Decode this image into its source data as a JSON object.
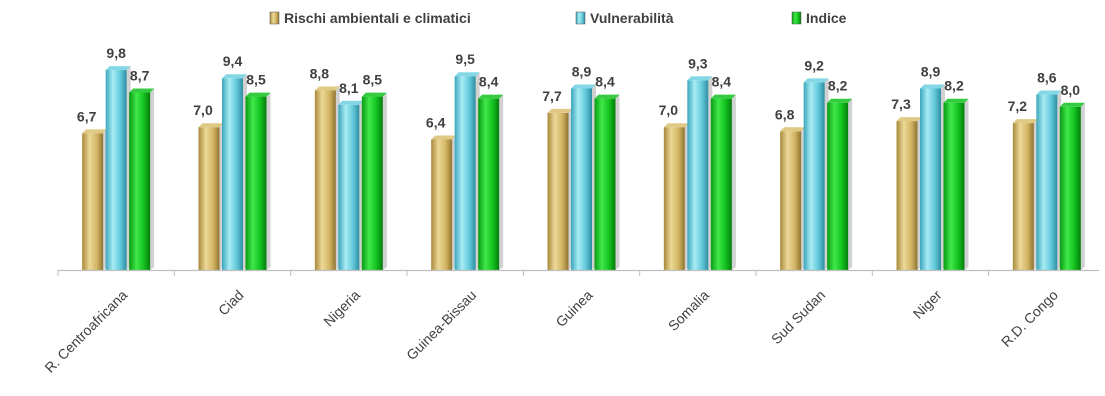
{
  "chart_data": {
    "type": "bar",
    "categories": [
      "R. Centroafricana",
      "Ciad",
      "Nigeria",
      "Guinea-Bissau",
      "Guinea",
      "Somalia",
      "Sud Sudan",
      "Niger",
      "R.D. Congo"
    ],
    "series": [
      {
        "name": "Rischi ambientali e climatici",
        "values": [
          6.7,
          7.0,
          8.8,
          6.4,
          7.7,
          7.0,
          6.8,
          7.3,
          7.2
        ],
        "labels": [
          "6,7",
          "7,0",
          "8,8",
          "6,4",
          "7,7",
          "7,0",
          "6,8",
          "7,3",
          "7,2"
        ],
        "color": "#d9c070"
      },
      {
        "name": "Vulnerabilità",
        "values": [
          9.8,
          9.4,
          8.1,
          9.5,
          8.9,
          9.3,
          9.2,
          8.9,
          8.6
        ],
        "labels": [
          "9,8",
          "9,4",
          "8,1",
          "9,5",
          "8,9",
          "9,3",
          "9,2",
          "8,9",
          "8,6"
        ],
        "color": "#6fd0e0"
      },
      {
        "name": "Indice",
        "values": [
          8.7,
          8.5,
          8.5,
          8.4,
          8.4,
          8.4,
          8.2,
          8.2,
          8.0
        ],
        "labels": [
          "8,7",
          "8,5",
          "8,5",
          "8,4",
          "8,4",
          "8,4",
          "8,2",
          "8,2",
          "8,0"
        ],
        "color": "#12c21e"
      }
    ],
    "ylim": [
      0,
      10
    ],
    "grid": false,
    "legend_position": "top",
    "title": "",
    "xlabel": "",
    "ylabel": ""
  }
}
